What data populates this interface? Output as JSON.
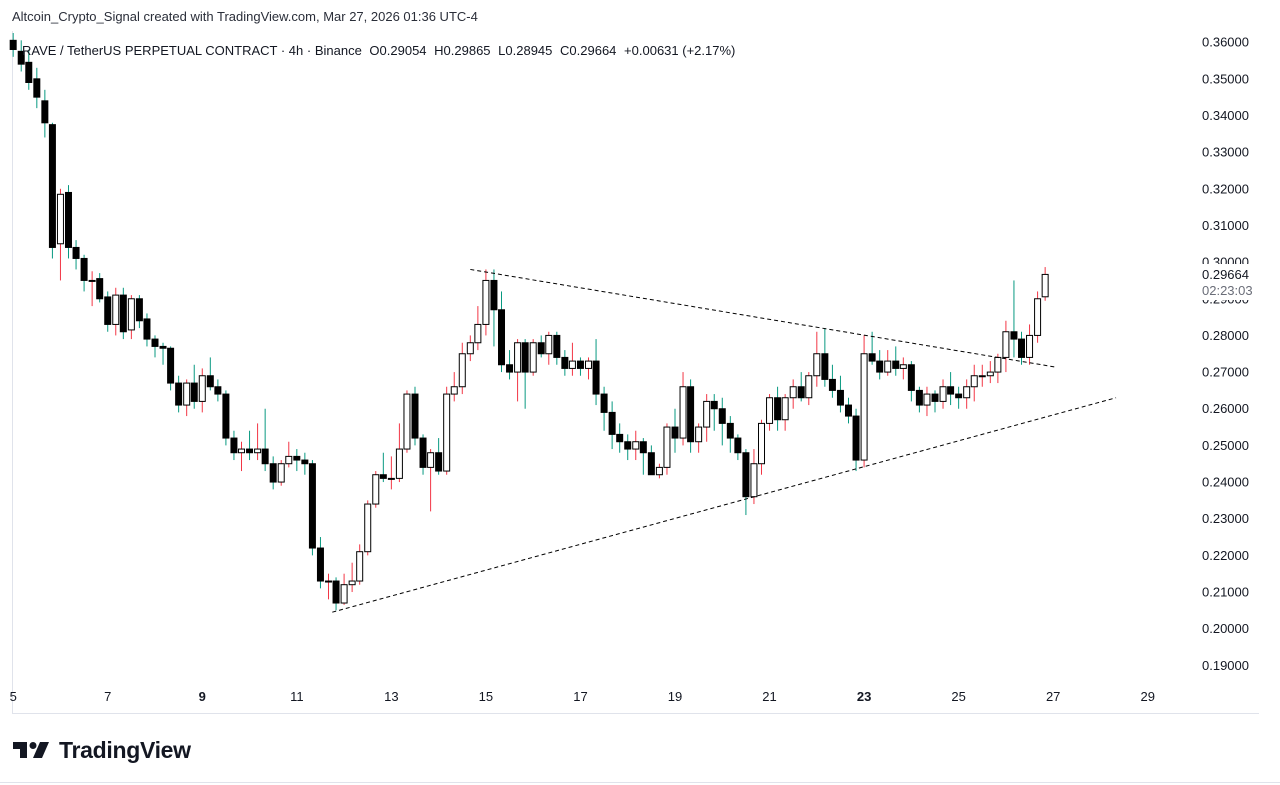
{
  "caption": "Altcoin_Crypto_Signal created with TradingView.com, Mar 27, 2026 01:36 UTC-4",
  "legend": {
    "symbol": "RAVE / TetherUS PERPETUAL CONTRACT · 4h · Binance",
    "open": "O0.29054",
    "high": "H0.29865",
    "low": "L0.28945",
    "close": "C0.29664",
    "change": "+0.00631 (+2.17%)"
  },
  "price_label": {
    "value": "0.29664",
    "countdown": "02:23:03"
  },
  "brand": "TradingView",
  "colors": {
    "bull_body": "#ffffff",
    "bear_body": "#000000",
    "bull_wick": "#f23645",
    "bear_wick": "#089981",
    "line": "#000000"
  },
  "chart_data": {
    "type": "candlestick",
    "ylim": [
      0.186,
      0.3625
    ],
    "y_ticks": [
      "0.36000",
      "0.35000",
      "0.34000",
      "0.33000",
      "0.32000",
      "0.31000",
      "0.30000",
      "0.29000",
      "0.28000",
      "0.27000",
      "0.26000",
      "0.25000",
      "0.24000",
      "0.23000",
      "0.22000",
      "0.21000",
      "0.20000",
      "0.19000"
    ],
    "x_range_days": [
      4.975,
      30.0
    ],
    "x_ticks": [
      {
        "label": "5",
        "day": 5,
        "bold": false
      },
      {
        "label": "7",
        "day": 7,
        "bold": false
      },
      {
        "label": "9",
        "day": 9,
        "bold": true
      },
      {
        "label": "11",
        "day": 11,
        "bold": false
      },
      {
        "label": "13",
        "day": 13,
        "bold": false
      },
      {
        "label": "15",
        "day": 15,
        "bold": false
      },
      {
        "label": "17",
        "day": 17,
        "bold": false
      },
      {
        "label": "19",
        "day": 19,
        "bold": false
      },
      {
        "label": "21",
        "day": 21,
        "bold": false
      },
      {
        "label": "23",
        "day": 23,
        "bold": true
      },
      {
        "label": "25",
        "day": 25,
        "bold": false
      },
      {
        "label": "27",
        "day": 27,
        "bold": false
      },
      {
        "label": "29",
        "day": 29,
        "bold": false
      }
    ],
    "candles": [
      {
        "d": 5.0,
        "o": 0.3605,
        "h": 0.3625,
        "l": 0.356,
        "c": 0.358
      },
      {
        "d": 5.17,
        "o": 0.3575,
        "h": 0.3605,
        "l": 0.352,
        "c": 0.354
      },
      {
        "d": 5.33,
        "o": 0.3545,
        "h": 0.358,
        "l": 0.347,
        "c": 0.349
      },
      {
        "d": 5.5,
        "o": 0.35,
        "h": 0.353,
        "l": 0.342,
        "c": 0.345
      },
      {
        "d": 5.67,
        "o": 0.344,
        "h": 0.347,
        "l": 0.334,
        "c": 0.338
      },
      {
        "d": 5.83,
        "o": 0.3375,
        "h": 0.338,
        "l": 0.301,
        "c": 0.304
      },
      {
        "d": 6.0,
        "o": 0.305,
        "h": 0.32,
        "l": 0.295,
        "c": 0.3185
      },
      {
        "d": 6.17,
        "o": 0.319,
        "h": 0.321,
        "l": 0.301,
        "c": 0.304
      },
      {
        "d": 6.33,
        "o": 0.304,
        "h": 0.306,
        "l": 0.298,
        "c": 0.301
      },
      {
        "d": 6.5,
        "o": 0.301,
        "h": 0.302,
        "l": 0.292,
        "c": 0.295
      },
      {
        "d": 6.67,
        "o": 0.295,
        "h": 0.2975,
        "l": 0.288,
        "c": 0.295
      },
      {
        "d": 6.83,
        "o": 0.2955,
        "h": 0.297,
        "l": 0.289,
        "c": 0.29
      },
      {
        "d": 7.0,
        "o": 0.2905,
        "h": 0.292,
        "l": 0.281,
        "c": 0.283
      },
      {
        "d": 7.17,
        "o": 0.283,
        "h": 0.293,
        "l": 0.28,
        "c": 0.291
      },
      {
        "d": 7.33,
        "o": 0.291,
        "h": 0.293,
        "l": 0.279,
        "c": 0.281
      },
      {
        "d": 7.5,
        "o": 0.2815,
        "h": 0.291,
        "l": 0.279,
        "c": 0.29
      },
      {
        "d": 7.67,
        "o": 0.29,
        "h": 0.291,
        "l": 0.282,
        "c": 0.284
      },
      {
        "d": 7.83,
        "o": 0.2845,
        "h": 0.286,
        "l": 0.277,
        "c": 0.279
      },
      {
        "d": 8.0,
        "o": 0.279,
        "h": 0.28,
        "l": 0.274,
        "c": 0.277
      },
      {
        "d": 8.17,
        "o": 0.277,
        "h": 0.278,
        "l": 0.272,
        "c": 0.2765
      },
      {
        "d": 8.33,
        "o": 0.2765,
        "h": 0.277,
        "l": 0.265,
        "c": 0.267
      },
      {
        "d": 8.5,
        "o": 0.267,
        "h": 0.269,
        "l": 0.259,
        "c": 0.261
      },
      {
        "d": 8.67,
        "o": 0.261,
        "h": 0.268,
        "l": 0.258,
        "c": 0.267
      },
      {
        "d": 8.83,
        "o": 0.267,
        "h": 0.272,
        "l": 0.26,
        "c": 0.262
      },
      {
        "d": 9.0,
        "o": 0.262,
        "h": 0.271,
        "l": 0.259,
        "c": 0.269
      },
      {
        "d": 9.17,
        "o": 0.269,
        "h": 0.274,
        "l": 0.265,
        "c": 0.266
      },
      {
        "d": 9.33,
        "o": 0.266,
        "h": 0.268,
        "l": 0.262,
        "c": 0.264
      },
      {
        "d": 9.5,
        "o": 0.264,
        "h": 0.265,
        "l": 0.25,
        "c": 0.252
      },
      {
        "d": 9.67,
        "o": 0.252,
        "h": 0.254,
        "l": 0.246,
        "c": 0.248
      },
      {
        "d": 9.83,
        "o": 0.248,
        "h": 0.251,
        "l": 0.243,
        "c": 0.249
      },
      {
        "d": 10.0,
        "o": 0.249,
        "h": 0.254,
        "l": 0.246,
        "c": 0.248
      },
      {
        "d": 10.17,
        "o": 0.248,
        "h": 0.256,
        "l": 0.246,
        "c": 0.249
      },
      {
        "d": 10.33,
        "o": 0.249,
        "h": 0.26,
        "l": 0.243,
        "c": 0.245
      },
      {
        "d": 10.5,
        "o": 0.245,
        "h": 0.247,
        "l": 0.238,
        "c": 0.24
      },
      {
        "d": 10.67,
        "o": 0.24,
        "h": 0.246,
        "l": 0.239,
        "c": 0.245
      },
      {
        "d": 10.83,
        "o": 0.245,
        "h": 0.251,
        "l": 0.244,
        "c": 0.247
      },
      {
        "d": 11.0,
        "o": 0.247,
        "h": 0.249,
        "l": 0.243,
        "c": 0.246
      },
      {
        "d": 11.17,
        "o": 0.246,
        "h": 0.248,
        "l": 0.242,
        "c": 0.245
      },
      {
        "d": 11.33,
        "o": 0.245,
        "h": 0.246,
        "l": 0.22,
        "c": 0.222
      },
      {
        "d": 11.5,
        "o": 0.222,
        "h": 0.225,
        "l": 0.211,
        "c": 0.213
      },
      {
        "d": 11.67,
        "o": 0.213,
        "h": 0.215,
        "l": 0.208,
        "c": 0.213
      },
      {
        "d": 11.83,
        "o": 0.213,
        "h": 0.214,
        "l": 0.205,
        "c": 0.207
      },
      {
        "d": 12.0,
        "o": 0.207,
        "h": 0.215,
        "l": 0.2065,
        "c": 0.212
      },
      {
        "d": 12.17,
        "o": 0.212,
        "h": 0.218,
        "l": 0.21,
        "c": 0.213
      },
      {
        "d": 12.33,
        "o": 0.213,
        "h": 0.223,
        "l": 0.212,
        "c": 0.221
      },
      {
        "d": 12.5,
        "o": 0.221,
        "h": 0.235,
        "l": 0.22,
        "c": 0.234
      },
      {
        "d": 12.67,
        "o": 0.234,
        "h": 0.243,
        "l": 0.233,
        "c": 0.242
      },
      {
        "d": 12.83,
        "o": 0.242,
        "h": 0.248,
        "l": 0.24,
        "c": 0.241
      },
      {
        "d": 13.0,
        "o": 0.241,
        "h": 0.247,
        "l": 0.238,
        "c": 0.241
      },
      {
        "d": 13.17,
        "o": 0.241,
        "h": 0.256,
        "l": 0.24,
        "c": 0.249
      },
      {
        "d": 13.33,
        "o": 0.249,
        "h": 0.265,
        "l": 0.248,
        "c": 0.264
      },
      {
        "d": 13.5,
        "o": 0.264,
        "h": 0.266,
        "l": 0.25,
        "c": 0.252
      },
      {
        "d": 13.67,
        "o": 0.252,
        "h": 0.253,
        "l": 0.242,
        "c": 0.244
      },
      {
        "d": 13.83,
        "o": 0.244,
        "h": 0.249,
        "l": 0.232,
        "c": 0.248
      },
      {
        "d": 14.0,
        "o": 0.248,
        "h": 0.252,
        "l": 0.242,
        "c": 0.243
      },
      {
        "d": 14.17,
        "o": 0.243,
        "h": 0.266,
        "l": 0.242,
        "c": 0.264
      },
      {
        "d": 14.33,
        "o": 0.264,
        "h": 0.27,
        "l": 0.262,
        "c": 0.266
      },
      {
        "d": 14.5,
        "o": 0.266,
        "h": 0.278,
        "l": 0.264,
        "c": 0.275
      },
      {
        "d": 14.67,
        "o": 0.275,
        "h": 0.28,
        "l": 0.273,
        "c": 0.278
      },
      {
        "d": 14.83,
        "o": 0.278,
        "h": 0.288,
        "l": 0.276,
        "c": 0.283
      },
      {
        "d": 15.0,
        "o": 0.283,
        "h": 0.298,
        "l": 0.28,
        "c": 0.295
      },
      {
        "d": 15.17,
        "o": 0.295,
        "h": 0.298,
        "l": 0.277,
        "c": 0.287
      },
      {
        "d": 15.33,
        "o": 0.287,
        "h": 0.292,
        "l": 0.27,
        "c": 0.272
      },
      {
        "d": 15.5,
        "o": 0.272,
        "h": 0.276,
        "l": 0.268,
        "c": 0.27
      },
      {
        "d": 15.67,
        "o": 0.27,
        "h": 0.279,
        "l": 0.262,
        "c": 0.278
      },
      {
        "d": 15.83,
        "o": 0.278,
        "h": 0.279,
        "l": 0.26,
        "c": 0.27
      },
      {
        "d": 16.0,
        "o": 0.27,
        "h": 0.279,
        "l": 0.269,
        "c": 0.278
      },
      {
        "d": 16.17,
        "o": 0.278,
        "h": 0.28,
        "l": 0.274,
        "c": 0.275
      },
      {
        "d": 16.33,
        "o": 0.275,
        "h": 0.281,
        "l": 0.272,
        "c": 0.28
      },
      {
        "d": 16.5,
        "o": 0.28,
        "h": 0.281,
        "l": 0.272,
        "c": 0.274
      },
      {
        "d": 16.67,
        "o": 0.274,
        "h": 0.276,
        "l": 0.269,
        "c": 0.271
      },
      {
        "d": 16.83,
        "o": 0.271,
        "h": 0.278,
        "l": 0.269,
        "c": 0.273
      },
      {
        "d": 17.0,
        "o": 0.273,
        "h": 0.274,
        "l": 0.269,
        "c": 0.271
      },
      {
        "d": 17.17,
        "o": 0.271,
        "h": 0.274,
        "l": 0.268,
        "c": 0.273
      },
      {
        "d": 17.33,
        "o": 0.273,
        "h": 0.279,
        "l": 0.261,
        "c": 0.264
      },
      {
        "d": 17.5,
        "o": 0.264,
        "h": 0.266,
        "l": 0.254,
        "c": 0.259
      },
      {
        "d": 17.67,
        "o": 0.259,
        "h": 0.262,
        "l": 0.249,
        "c": 0.253
      },
      {
        "d": 17.83,
        "o": 0.253,
        "h": 0.256,
        "l": 0.248,
        "c": 0.251
      },
      {
        "d": 18.0,
        "o": 0.251,
        "h": 0.253,
        "l": 0.246,
        "c": 0.249
      },
      {
        "d": 18.17,
        "o": 0.249,
        "h": 0.254,
        "l": 0.246,
        "c": 0.251
      },
      {
        "d": 18.33,
        "o": 0.251,
        "h": 0.252,
        "l": 0.242,
        "c": 0.248
      },
      {
        "d": 18.5,
        "o": 0.248,
        "h": 0.25,
        "l": 0.242,
        "c": 0.242
      },
      {
        "d": 18.67,
        "o": 0.242,
        "h": 0.245,
        "l": 0.241,
        "c": 0.244
      },
      {
        "d": 18.83,
        "o": 0.244,
        "h": 0.256,
        "l": 0.242,
        "c": 0.255
      },
      {
        "d": 19.0,
        "o": 0.255,
        "h": 0.26,
        "l": 0.248,
        "c": 0.252
      },
      {
        "d": 19.17,
        "o": 0.252,
        "h": 0.27,
        "l": 0.25,
        "c": 0.266
      },
      {
        "d": 19.33,
        "o": 0.266,
        "h": 0.268,
        "l": 0.248,
        "c": 0.251
      },
      {
        "d": 19.5,
        "o": 0.251,
        "h": 0.256,
        "l": 0.248,
        "c": 0.255
      },
      {
        "d": 19.67,
        "o": 0.255,
        "h": 0.264,
        "l": 0.251,
        "c": 0.262
      },
      {
        "d": 19.83,
        "o": 0.262,
        "h": 0.264,
        "l": 0.254,
        "c": 0.26
      },
      {
        "d": 20.0,
        "o": 0.26,
        "h": 0.263,
        "l": 0.25,
        "c": 0.256
      },
      {
        "d": 20.17,
        "o": 0.256,
        "h": 0.258,
        "l": 0.248,
        "c": 0.252
      },
      {
        "d": 20.33,
        "o": 0.252,
        "h": 0.253,
        "l": 0.246,
        "c": 0.248
      },
      {
        "d": 20.5,
        "o": 0.248,
        "h": 0.249,
        "l": 0.231,
        "c": 0.236
      },
      {
        "d": 20.67,
        "o": 0.236,
        "h": 0.249,
        "l": 0.234,
        "c": 0.245
      },
      {
        "d": 20.83,
        "o": 0.245,
        "h": 0.257,
        "l": 0.242,
        "c": 0.256
      },
      {
        "d": 21.0,
        "o": 0.256,
        "h": 0.264,
        "l": 0.254,
        "c": 0.263
      },
      {
        "d": 21.17,
        "o": 0.263,
        "h": 0.266,
        "l": 0.254,
        "c": 0.257
      },
      {
        "d": 21.33,
        "o": 0.257,
        "h": 0.264,
        "l": 0.254,
        "c": 0.263
      },
      {
        "d": 21.5,
        "o": 0.263,
        "h": 0.268,
        "l": 0.26,
        "c": 0.266
      },
      {
        "d": 21.67,
        "o": 0.266,
        "h": 0.27,
        "l": 0.262,
        "c": 0.263
      },
      {
        "d": 21.83,
        "o": 0.263,
        "h": 0.27,
        "l": 0.261,
        "c": 0.269
      },
      {
        "d": 22.0,
        "o": 0.269,
        "h": 0.281,
        "l": 0.266,
        "c": 0.275
      },
      {
        "d": 22.17,
        "o": 0.275,
        "h": 0.282,
        "l": 0.266,
        "c": 0.268
      },
      {
        "d": 22.33,
        "o": 0.268,
        "h": 0.272,
        "l": 0.263,
        "c": 0.265
      },
      {
        "d": 22.5,
        "o": 0.265,
        "h": 0.269,
        "l": 0.259,
        "c": 0.261
      },
      {
        "d": 22.67,
        "o": 0.261,
        "h": 0.263,
        "l": 0.256,
        "c": 0.258
      },
      {
        "d": 22.83,
        "o": 0.258,
        "h": 0.26,
        "l": 0.243,
        "c": 0.246
      },
      {
        "d": 23.0,
        "o": 0.246,
        "h": 0.28,
        "l": 0.244,
        "c": 0.275
      },
      {
        "d": 23.17,
        "o": 0.275,
        "h": 0.281,
        "l": 0.272,
        "c": 0.273
      },
      {
        "d": 23.33,
        "o": 0.273,
        "h": 0.276,
        "l": 0.268,
        "c": 0.27
      },
      {
        "d": 23.5,
        "o": 0.27,
        "h": 0.276,
        "l": 0.269,
        "c": 0.273
      },
      {
        "d": 23.67,
        "o": 0.273,
        "h": 0.277,
        "l": 0.269,
        "c": 0.271
      },
      {
        "d": 23.83,
        "o": 0.271,
        "h": 0.274,
        "l": 0.268,
        "c": 0.272
      },
      {
        "d": 24.0,
        "o": 0.272,
        "h": 0.273,
        "l": 0.262,
        "c": 0.265
      },
      {
        "d": 24.17,
        "o": 0.265,
        "h": 0.266,
        "l": 0.259,
        "c": 0.261
      },
      {
        "d": 24.33,
        "o": 0.261,
        "h": 0.266,
        "l": 0.258,
        "c": 0.264
      },
      {
        "d": 24.5,
        "o": 0.264,
        "h": 0.265,
        "l": 0.259,
        "c": 0.262
      },
      {
        "d": 24.67,
        "o": 0.262,
        "h": 0.268,
        "l": 0.26,
        "c": 0.266
      },
      {
        "d": 24.83,
        "o": 0.266,
        "h": 0.27,
        "l": 0.261,
        "c": 0.264
      },
      {
        "d": 25.0,
        "o": 0.264,
        "h": 0.266,
        "l": 0.26,
        "c": 0.263
      },
      {
        "d": 25.17,
        "o": 0.263,
        "h": 0.268,
        "l": 0.26,
        "c": 0.266
      },
      {
        "d": 25.33,
        "o": 0.266,
        "h": 0.272,
        "l": 0.262,
        "c": 0.269
      },
      {
        "d": 25.5,
        "o": 0.269,
        "h": 0.272,
        "l": 0.266,
        "c": 0.269
      },
      {
        "d": 25.67,
        "o": 0.269,
        "h": 0.273,
        "l": 0.267,
        "c": 0.27
      },
      {
        "d": 25.83,
        "o": 0.27,
        "h": 0.275,
        "l": 0.267,
        "c": 0.274
      },
      {
        "d": 26.0,
        "o": 0.274,
        "h": 0.284,
        "l": 0.27,
        "c": 0.281
      },
      {
        "d": 26.17,
        "o": 0.281,
        "h": 0.295,
        "l": 0.274,
        "c": 0.279
      },
      {
        "d": 26.33,
        "o": 0.279,
        "h": 0.281,
        "l": 0.272,
        "c": 0.274
      },
      {
        "d": 26.5,
        "o": 0.274,
        "h": 0.283,
        "l": 0.272,
        "c": 0.28
      },
      {
        "d": 26.67,
        "o": 0.28,
        "h": 0.292,
        "l": 0.278,
        "c": 0.29
      },
      {
        "d": 26.83,
        "o": 0.29054,
        "h": 0.29865,
        "l": 0.28945,
        "c": 0.29664
      }
    ],
    "trendlines": [
      {
        "name": "upper-trendline",
        "from": {
          "d": 14.67,
          "p": 0.298
        },
        "to": {
          "d": 27.08,
          "p": 0.2713
        }
      },
      {
        "name": "lower-trendline",
        "from": {
          "d": 11.75,
          "p": 0.2045
        },
        "to": {
          "d": 28.33,
          "p": 0.263
        }
      }
    ]
  }
}
